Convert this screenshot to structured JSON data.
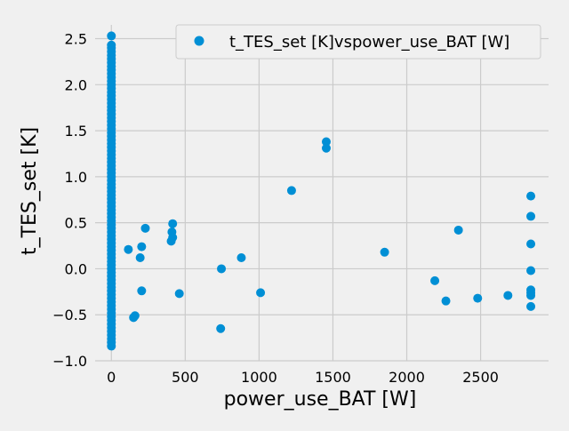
{
  "chart_data": {
    "type": "scatter",
    "title": "",
    "xlabel": "power_use_BAT [W]",
    "ylabel": "t_TES_set [K]",
    "xlim": [
      -110,
      2960
    ],
    "ylim": [
      -1.0,
      2.65
    ],
    "x_ticks": [
      0,
      500,
      1000,
      1500,
      2000,
      2500
    ],
    "y_ticks": [
      -1.0,
      -0.5,
      0.0,
      0.5,
      1.0,
      1.5,
      2.0,
      2.5
    ],
    "x_tick_labels": [
      "0",
      "500",
      "1000",
      "1500",
      "2000",
      "2500"
    ],
    "y_tick_labels": [
      "−1.0",
      "−0.5",
      "0.0",
      "0.5",
      "1.0",
      "1.5",
      "2.0",
      "2.5"
    ],
    "grid": true,
    "legend_position": "top-right",
    "colors": {
      "background": "#f0f0f0",
      "grid": "#cbcbcb",
      "marker": "#008fd5"
    },
    "series": [
      {
        "name": "t_TES_set [K]vspower_use_BAT [W]",
        "column_x": 0,
        "column_y": [
          -0.84,
          -0.8,
          -0.76,
          -0.72,
          -0.68,
          -0.64,
          -0.6,
          -0.56,
          -0.52,
          -0.48,
          -0.44,
          -0.4,
          -0.36,
          -0.32,
          -0.28,
          -0.24,
          -0.2,
          -0.16,
          -0.12,
          -0.08,
          -0.04,
          0.0,
          0.04,
          0.08,
          0.12,
          0.16,
          0.2,
          0.24,
          0.28,
          0.32,
          0.36,
          0.4,
          0.44,
          0.48,
          0.52,
          0.56,
          0.6,
          0.64,
          0.68,
          0.72,
          0.76,
          0.8,
          0.84,
          0.88,
          0.92,
          0.96,
          1.0,
          1.04,
          1.08,
          1.12,
          1.16,
          1.2,
          1.24,
          1.28,
          1.32,
          1.36,
          1.4,
          1.44,
          1.48,
          1.52,
          1.56,
          1.6,
          1.64,
          1.68,
          1.72,
          1.76,
          1.8,
          1.84,
          1.88,
          1.92,
          1.96,
          2.0,
          2.04,
          2.08,
          2.12,
          2.16,
          2.2,
          2.24,
          2.28,
          2.32,
          2.36,
          2.4,
          2.43,
          2.53
        ],
        "points": [
          {
            "x": 115,
            "y": 0.21
          },
          {
            "x": 150,
            "y": -0.53
          },
          {
            "x": 160,
            "y": -0.51
          },
          {
            "x": 195,
            "y": 0.12
          },
          {
            "x": 205,
            "y": 0.24
          },
          {
            "x": 205,
            "y": -0.24
          },
          {
            "x": 230,
            "y": 0.44
          },
          {
            "x": 415,
            "y": 0.49
          },
          {
            "x": 410,
            "y": 0.4
          },
          {
            "x": 415,
            "y": 0.34
          },
          {
            "x": 405,
            "y": 0.3
          },
          {
            "x": 460,
            "y": -0.27
          },
          {
            "x": 745,
            "y": 0.0
          },
          {
            "x": 740,
            "y": -0.65
          },
          {
            "x": 880,
            "y": 0.12
          },
          {
            "x": 1010,
            "y": -0.26
          },
          {
            "x": 1220,
            "y": 0.85
          },
          {
            "x": 1455,
            "y": 1.38
          },
          {
            "x": 1455,
            "y": 1.31
          },
          {
            "x": 1850,
            "y": 0.18
          },
          {
            "x": 2190,
            "y": -0.13
          },
          {
            "x": 2265,
            "y": -0.35
          },
          {
            "x": 2350,
            "y": 0.42
          },
          {
            "x": 2480,
            "y": -0.32
          },
          {
            "x": 2685,
            "y": -0.29
          },
          {
            "x": 2840,
            "y": 0.79
          },
          {
            "x": 2840,
            "y": 0.57
          },
          {
            "x": 2840,
            "y": 0.27
          },
          {
            "x": 2840,
            "y": -0.02
          },
          {
            "x": 2840,
            "y": -0.23
          },
          {
            "x": 2840,
            "y": -0.26
          },
          {
            "x": 2840,
            "y": -0.29
          },
          {
            "x": 2840,
            "y": -0.41
          }
        ]
      }
    ]
  }
}
